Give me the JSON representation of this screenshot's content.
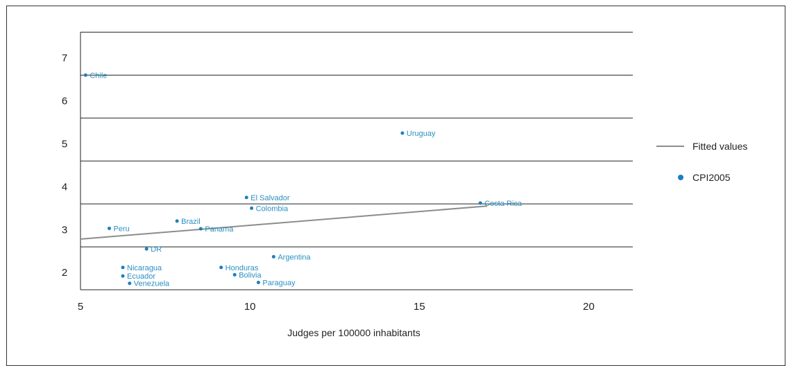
{
  "chart_data": {
    "type": "scatter",
    "xlabel": "Judges per 100000 inhabitants",
    "ylabel": "",
    "xlim": [
      5,
      21.3
    ],
    "ylim": [
      1.6,
      7.3
    ],
    "xticks": [
      5,
      10,
      15,
      20
    ],
    "yticks": [
      2,
      3,
      4,
      5,
      6,
      7
    ],
    "grid": "horizontal",
    "legend_position": "right",
    "colors": {
      "points": "#1b7fbf",
      "labels": "#2a8fc1",
      "fit": "#8c8c8c",
      "grid": "#222222"
    },
    "series": [
      {
        "name": "CPI2005",
        "kind": "points",
        "points": [
          {
            "label": "Chile",
            "x": 5.15,
            "y": 6.6
          },
          {
            "label": "Uruguay",
            "x": 14.5,
            "y": 5.25
          },
          {
            "label": "El Salvador",
            "x": 9.9,
            "y": 3.75
          },
          {
            "label": "Colombia",
            "x": 10.05,
            "y": 3.5
          },
          {
            "label": "Costa Rica",
            "x": 16.8,
            "y": 3.62
          },
          {
            "label": "Brazil",
            "x": 7.85,
            "y": 3.2
          },
          {
            "label": "Peru",
            "x": 5.85,
            "y": 3.03
          },
          {
            "label": "Panama",
            "x": 8.55,
            "y": 3.02
          },
          {
            "label": "DR",
            "x": 6.95,
            "y": 2.55
          },
          {
            "label": "Argentina",
            "x": 10.7,
            "y": 2.37
          },
          {
            "label": "Nicaragua",
            "x": 6.25,
            "y": 2.12
          },
          {
            "label": "Honduras",
            "x": 9.15,
            "y": 2.12
          },
          {
            "label": "Ecuador",
            "x": 6.25,
            "y": 1.92
          },
          {
            "label": "Bolivia",
            "x": 9.55,
            "y": 1.95
          },
          {
            "label": "Paraguay",
            "x": 10.25,
            "y": 1.77
          },
          {
            "label": "Venezuela",
            "x": 6.45,
            "y": 1.75
          }
        ]
      },
      {
        "name": "Fitted values",
        "kind": "line",
        "x": [
          5,
          17
        ],
        "y": [
          2.78,
          3.55
        ]
      }
    ],
    "legend": [
      {
        "label": "Fitted values",
        "marker": "line"
      },
      {
        "label": "CPI2005",
        "marker": "dot"
      }
    ]
  }
}
